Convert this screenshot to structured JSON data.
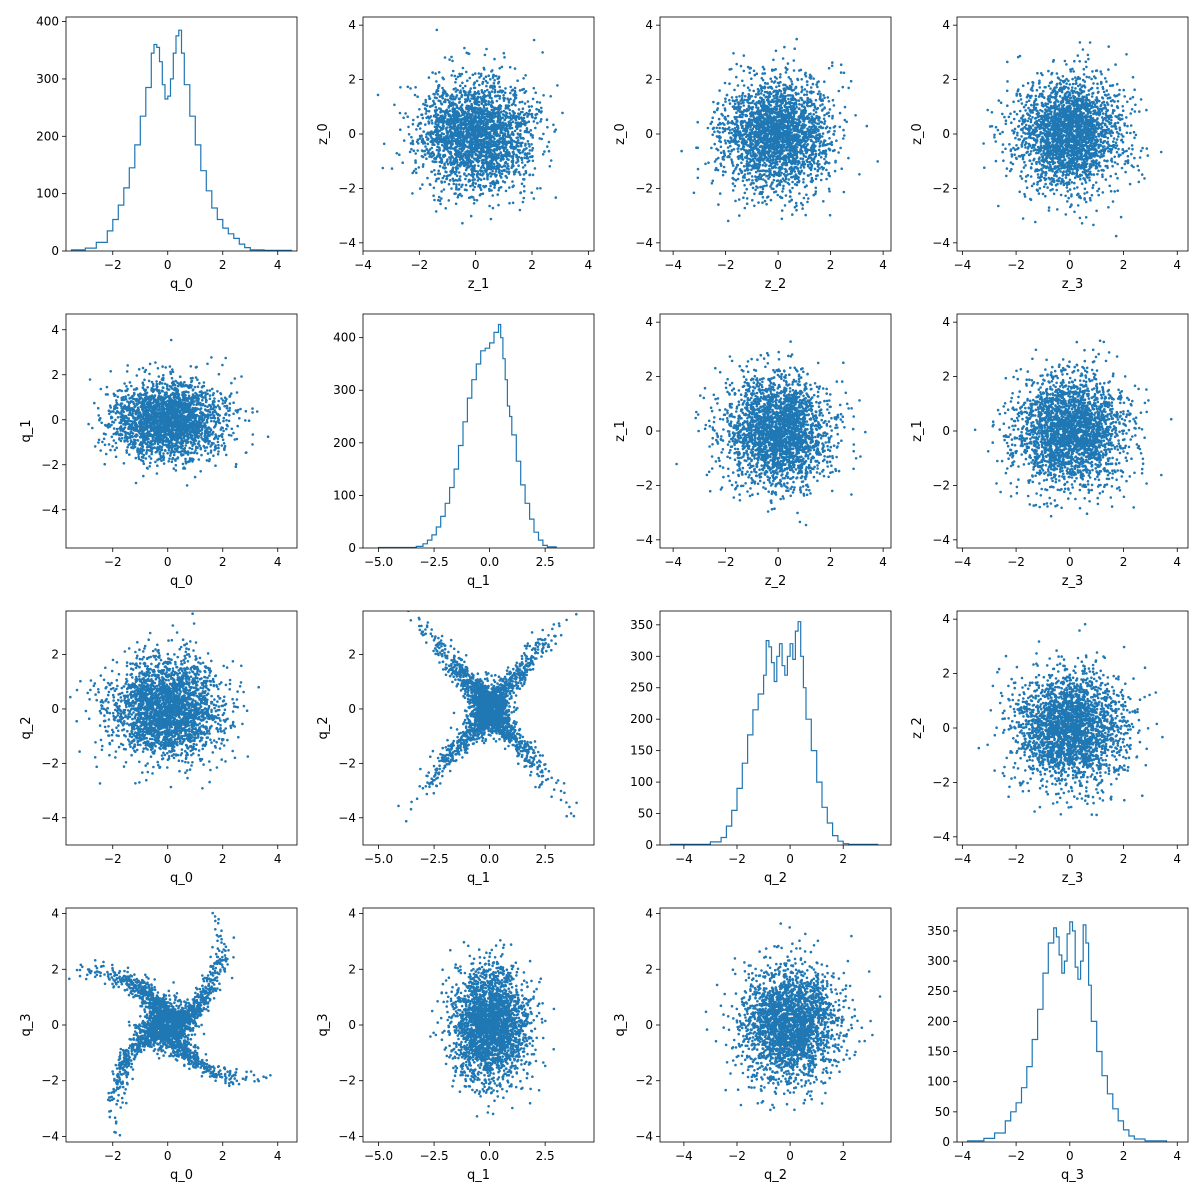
{
  "figure": {
    "background": "#ffffff",
    "series_color": "#1f77b4"
  },
  "chart_data": [
    {
      "row": 0,
      "col": 0,
      "type": "histogram",
      "xlabel": "q_0",
      "ylabel": "",
      "xlim": [
        -3.7,
        4.7
      ],
      "ylim": [
        0,
        408
      ],
      "xticks": [
        -2,
        0,
        2,
        4
      ],
      "yticks": [
        0,
        100,
        200,
        300,
        400
      ],
      "bins_x": [
        -3.5,
        -3.0,
        -2.6,
        -2.2,
        -2.0,
        -1.8,
        -1.6,
        -1.4,
        -1.2,
        -1.0,
        -0.8,
        -0.6,
        -0.5,
        -0.4,
        -0.3,
        -0.2,
        -0.1,
        0.0,
        0.1,
        0.2,
        0.3,
        0.4,
        0.5,
        0.6,
        0.8,
        1.0,
        1.2,
        1.4,
        1.6,
        1.8,
        2.0,
        2.2,
        2.4,
        2.6,
        2.8,
        3.0,
        3.5,
        4.5
      ],
      "bins_y": [
        2,
        5,
        15,
        35,
        55,
        80,
        110,
        145,
        185,
        235,
        285,
        345,
        360,
        355,
        330,
        290,
        265,
        270,
        300,
        345,
        375,
        385,
        345,
        290,
        235,
        185,
        140,
        105,
        75,
        55,
        40,
        30,
        22,
        12,
        6,
        2,
        1
      ]
    },
    {
      "row": 0,
      "col": 1,
      "type": "scatter",
      "xlabel": "z_1",
      "ylabel": "z_0",
      "xlim": [
        -4,
        4.2
      ],
      "ylim": [
        -4.3,
        4.3
      ],
      "xticks": [
        -4,
        -2,
        0,
        2,
        4
      ],
      "yticks": [
        -4,
        -2,
        0,
        2,
        4
      ],
      "shape": "gauss",
      "sx": 1,
      "sy": 1,
      "n": 2600,
      "seed": 11
    },
    {
      "row": 0,
      "col": 2,
      "type": "scatter",
      "xlabel": "z_2",
      "ylabel": "z_0",
      "xlim": [
        -4.5,
        4.3
      ],
      "ylim": [
        -4.3,
        4.3
      ],
      "xticks": [
        -4,
        -2,
        0,
        2,
        4
      ],
      "yticks": [
        -4,
        -2,
        0,
        2,
        4
      ],
      "shape": "gauss",
      "sx": 1,
      "sy": 1,
      "n": 2600,
      "seed": 12
    },
    {
      "row": 0,
      "col": 3,
      "type": "scatter",
      "xlabel": "z_3",
      "ylabel": "z_0",
      "xlim": [
        -4.2,
        4.4
      ],
      "ylim": [
        -4.3,
        4.3
      ],
      "xticks": [
        -4,
        -2,
        0,
        2,
        4
      ],
      "yticks": [
        -4,
        -2,
        0,
        2,
        4
      ],
      "shape": "gauss",
      "sx": 1,
      "sy": 1,
      "n": 2600,
      "seed": 13
    },
    {
      "row": 1,
      "col": 0,
      "type": "scatter",
      "xlabel": "q_0",
      "ylabel": "q_1",
      "xlim": [
        -3.7,
        4.7
      ],
      "ylim": [
        -5.7,
        4.7
      ],
      "xticks": [
        -2,
        0,
        2,
        4
      ],
      "yticks": [
        -4,
        -2,
        0,
        2,
        4
      ],
      "shape": "gauss",
      "sx": 1,
      "sy": 0.85,
      "n": 2600,
      "seed": 21
    },
    {
      "row": 1,
      "col": 1,
      "type": "histogram",
      "xlabel": "q_1",
      "ylabel": "",
      "xlim": [
        -5.7,
        4.7
      ],
      "ylim": [
        0,
        445
      ],
      "xticks": [
        -5.0,
        -2.5,
        0.0,
        2.5
      ],
      "yticks": [
        0,
        100,
        200,
        300,
        400
      ],
      "bins_x": [
        -5.0,
        -3.3,
        -3.0,
        -2.8,
        -2.6,
        -2.4,
        -2.2,
        -2.0,
        -1.8,
        -1.6,
        -1.4,
        -1.2,
        -1.0,
        -0.8,
        -0.6,
        -0.4,
        -0.2,
        0.0,
        0.2,
        0.4,
        0.5,
        0.6,
        0.7,
        0.8,
        0.9,
        1.0,
        1.2,
        1.4,
        1.6,
        1.8,
        2.0,
        2.2,
        2.4,
        2.6,
        3.0
      ],
      "bins_y": [
        1,
        3,
        8,
        15,
        25,
        40,
        60,
        85,
        115,
        150,
        195,
        240,
        285,
        320,
        350,
        375,
        380,
        390,
        410,
        425,
        400,
        360,
        320,
        270,
        250,
        215,
        165,
        120,
        85,
        55,
        30,
        15,
        5,
        2
      ]
    },
    {
      "row": 1,
      "col": 2,
      "type": "scatter",
      "xlabel": "z_2",
      "ylabel": "z_1",
      "xlim": [
        -4.5,
        4.3
      ],
      "ylim": [
        -4.3,
        4.3
      ],
      "xticks": [
        -4,
        -2,
        0,
        2,
        4
      ],
      "yticks": [
        -4,
        -2,
        0,
        2,
        4
      ],
      "shape": "gauss",
      "sx": 1,
      "sy": 1,
      "n": 2600,
      "seed": 22
    },
    {
      "row": 1,
      "col": 3,
      "type": "scatter",
      "xlabel": "z_3",
      "ylabel": "z_1",
      "xlim": [
        -4.2,
        4.4
      ],
      "ylim": [
        -4.3,
        4.3
      ],
      "xticks": [
        -4,
        -2,
        0,
        2,
        4
      ],
      "yticks": [
        -4,
        -2,
        0,
        2,
        4
      ],
      "shape": "gauss",
      "sx": 1,
      "sy": 1,
      "n": 2600,
      "seed": 23
    },
    {
      "row": 2,
      "col": 0,
      "type": "scatter",
      "xlabel": "q_0",
      "ylabel": "q_2",
      "xlim": [
        -3.7,
        4.7
      ],
      "ylim": [
        -5.0,
        3.6
      ],
      "xticks": [
        -2,
        0,
        2,
        4
      ],
      "yticks": [
        -4,
        -2,
        0,
        2
      ],
      "shape": "gauss",
      "sx": 1,
      "sy": 0.9,
      "n": 2600,
      "seed": 31
    },
    {
      "row": 2,
      "col": 1,
      "type": "scatter",
      "xlabel": "q_1",
      "ylabel": "q_2",
      "xlim": [
        -5.7,
        4.7
      ],
      "ylim": [
        -5.0,
        3.6
      ],
      "xticks": [
        -5.0,
        -2.5,
        0.0,
        2.5
      ],
      "yticks": [
        -4,
        -2,
        0,
        2
      ],
      "shape": "cross",
      "n": 2600,
      "seed": 32
    },
    {
      "row": 2,
      "col": 2,
      "type": "histogram",
      "xlabel": "q_2",
      "ylabel": "",
      "xlim": [
        -4.9,
        3.8
      ],
      "ylim": [
        0,
        372
      ],
      "xticks": [
        -4,
        -2,
        0,
        2
      ],
      "yticks": [
        0,
        50,
        100,
        150,
        200,
        250,
        300,
        350
      ],
      "bins_x": [
        -4.5,
        -3.0,
        -2.6,
        -2.4,
        -2.2,
        -2.0,
        -1.8,
        -1.6,
        -1.4,
        -1.2,
        -1.0,
        -0.9,
        -0.8,
        -0.7,
        -0.6,
        -0.5,
        -0.4,
        -0.3,
        -0.2,
        -0.1,
        0.0,
        0.1,
        0.2,
        0.3,
        0.4,
        0.5,
        0.6,
        0.8,
        1.0,
        1.2,
        1.4,
        1.6,
        1.8,
        2.0,
        2.2,
        3.3
      ],
      "bins_y": [
        1,
        5,
        12,
        30,
        55,
        90,
        130,
        175,
        215,
        240,
        270,
        325,
        315,
        290,
        260,
        300,
        320,
        285,
        270,
        300,
        320,
        295,
        340,
        355,
        300,
        250,
        200,
        150,
        100,
        60,
        35,
        15,
        6,
        2,
        1
      ]
    },
    {
      "row": 2,
      "col": 3,
      "type": "scatter",
      "xlabel": "z_3",
      "ylabel": "z_2",
      "xlim": [
        -4.2,
        4.4
      ],
      "ylim": [
        -4.3,
        4.3
      ],
      "xticks": [
        -4,
        -2,
        0,
        2,
        4
      ],
      "yticks": [
        -4,
        -2,
        0,
        2,
        4
      ],
      "shape": "gauss",
      "sx": 1,
      "sy": 1,
      "n": 2600,
      "seed": 33
    },
    {
      "row": 3,
      "col": 0,
      "type": "scatter",
      "xlabel": "q_0",
      "ylabel": "q_3",
      "xlim": [
        -3.7,
        4.7
      ],
      "ylim": [
        -4.2,
        4.2
      ],
      "xticks": [
        -2,
        0,
        2,
        4
      ],
      "yticks": [
        -4,
        -2,
        0,
        2,
        4
      ],
      "shape": "pinwheel",
      "n": 2600,
      "seed": 41
    },
    {
      "row": 3,
      "col": 1,
      "type": "scatter",
      "xlabel": "q_1",
      "ylabel": "q_3",
      "xlim": [
        -5.7,
        4.7
      ],
      "ylim": [
        -4.2,
        4.2
      ],
      "xticks": [
        -5.0,
        -2.5,
        0.0,
        2.5
      ],
      "yticks": [
        -4,
        -2,
        0,
        2,
        4
      ],
      "shape": "gauss",
      "sx": 0.85,
      "sy": 1,
      "n": 2600,
      "seed": 42
    },
    {
      "row": 3,
      "col": 2,
      "type": "scatter",
      "xlabel": "q_2",
      "ylabel": "q_3",
      "xlim": [
        -4.9,
        3.8
      ],
      "ylim": [
        -4.2,
        4.2
      ],
      "xticks": [
        -4,
        -2,
        0,
        2
      ],
      "yticks": [
        -4,
        -2,
        0,
        2,
        4
      ],
      "shape": "gauss",
      "sx": 0.9,
      "sy": 1,
      "n": 2600,
      "seed": 43
    },
    {
      "row": 3,
      "col": 3,
      "type": "histogram",
      "xlabel": "q_3",
      "ylabel": "",
      "xlim": [
        -4.2,
        4.4
      ],
      "ylim": [
        0,
        388
      ],
      "xticks": [
        -4,
        -2,
        0,
        2,
        4
      ],
      "yticks": [
        0,
        50,
        100,
        150,
        200,
        250,
        300,
        350
      ],
      "bins_x": [
        -3.8,
        -3.2,
        -2.8,
        -2.4,
        -2.2,
        -2.0,
        -1.8,
        -1.6,
        -1.4,
        -1.2,
        -1.0,
        -0.8,
        -0.6,
        -0.5,
        -0.4,
        -0.3,
        -0.2,
        -0.1,
        0.0,
        0.1,
        0.2,
        0.3,
        0.4,
        0.5,
        0.6,
        0.7,
        0.8,
        1.0,
        1.2,
        1.4,
        1.6,
        1.8,
        2.0,
        2.2,
        2.4,
        2.8,
        3.6
      ],
      "bins_y": [
        2,
        6,
        15,
        35,
        50,
        65,
        90,
        125,
        170,
        220,
        280,
        330,
        355,
        340,
        310,
        280,
        300,
        345,
        365,
        350,
        290,
        270,
        300,
        360,
        330,
        260,
        200,
        150,
        110,
        80,
        55,
        35,
        20,
        10,
        5,
        2
      ]
    }
  ]
}
